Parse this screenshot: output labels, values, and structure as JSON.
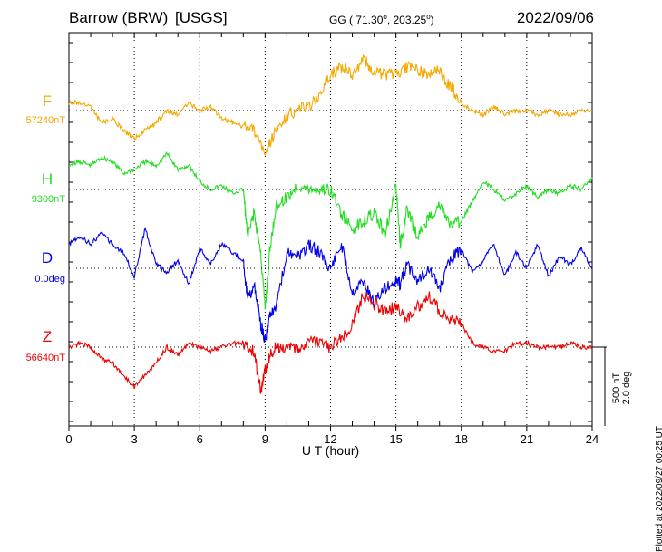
{
  "header": {
    "station": "Barrow (BRW)",
    "source": "[USGS]",
    "coords_prefix": "GG ( 71.30",
    "coords_mid": ", 203.25",
    "coords_suffix": ")",
    "degree_symbol": "o",
    "date": "2022/09/06"
  },
  "side_note": "Plotted at 2022/09/27 00:25 UT",
  "colors": {
    "F": "#f5a800",
    "H": "#22dd22",
    "D": "#0000ee",
    "Z": "#ee0000",
    "grid": "#000000"
  },
  "chart_data": {
    "type": "line",
    "xlabel": "U T (hour)",
    "xlim": [
      0,
      24
    ],
    "xticks": [
      0,
      3,
      6,
      9,
      12,
      15,
      18,
      21,
      24
    ],
    "grid": true,
    "scale": {
      "nT_label": "500 nT",
      "deg_label": "2.0 deg",
      "nT": 500,
      "deg": 2.0
    },
    "series": [
      {
        "name": "F",
        "baseline_label": "57240nT",
        "baseline": 57240,
        "unit": "nT",
        "x": [
          0,
          0.5,
          1,
          1.5,
          2,
          2.5,
          3,
          3.5,
          4,
          4.5,
          5,
          5.5,
          6,
          6.5,
          7,
          7.5,
          8,
          8.5,
          9,
          9.5,
          10,
          10.5,
          11,
          11.5,
          12,
          12.5,
          13,
          13.5,
          14,
          14.5,
          15,
          15.5,
          16,
          16.5,
          17,
          17.5,
          18,
          18.5,
          19,
          19.5,
          20,
          20.5,
          21,
          21.5,
          22,
          22.5,
          23,
          23.5,
          24
        ],
        "values": [
          50,
          50,
          25,
          -75,
          -50,
          -125,
          -175,
          -125,
          -75,
          0,
          -25,
          50,
          0,
          25,
          -50,
          -75,
          -100,
          -125,
          -250,
          -125,
          -25,
          0,
          25,
          100,
          225,
          275,
          225,
          325,
          250,
          225,
          225,
          275,
          250,
          225,
          250,
          150,
          50,
          0,
          -25,
          25,
          -25,
          0,
          0,
          -25,
          0,
          -25,
          -25,
          0,
          0
        ]
      },
      {
        "name": "H",
        "baseline_label": "9300nT",
        "baseline": 9300,
        "unit": "nT",
        "x": [
          0,
          0.5,
          1,
          1.5,
          2,
          2.5,
          3,
          3.5,
          4,
          4.5,
          5,
          5.5,
          6,
          6.5,
          7,
          7.5,
          8,
          8.2,
          8.5,
          8.8,
          9,
          9.2,
          9.5,
          10,
          10.5,
          11,
          11.5,
          12,
          12.5,
          13,
          13.5,
          14,
          14.5,
          15,
          15.2,
          15.5,
          16,
          16.5,
          17,
          17.5,
          18,
          18.5,
          19,
          19.5,
          20,
          20.5,
          21,
          21.5,
          22,
          22.5,
          23,
          23.5,
          24
        ],
        "values": [
          150,
          175,
          150,
          200,
          175,
          100,
          125,
          175,
          150,
          225,
          125,
          150,
          50,
          0,
          25,
          -25,
          0,
          -300,
          -150,
          -400,
          -750,
          -400,
          -100,
          -50,
          25,
          0,
          0,
          0,
          -150,
          -250,
          -200,
          -150,
          -275,
          25,
          -350,
          -125,
          -300,
          -175,
          -100,
          -225,
          -200,
          -75,
          50,
          0,
          -75,
          -25,
          25,
          -50,
          0,
          -25,
          25,
          0,
          75
        ]
      },
      {
        "name": "D",
        "baseline_label": "0.0deg",
        "baseline": 0.0,
        "unit": "deg",
        "x": [
          0,
          0.5,
          1,
          1.5,
          2,
          2.5,
          3,
          3.5,
          4,
          4.5,
          5,
          5.5,
          6,
          6.5,
          7,
          7.5,
          8,
          8.2,
          8.5,
          8.8,
          9,
          9.2,
          9.5,
          10,
          10.5,
          11,
          11.5,
          12,
          12.5,
          13,
          13.5,
          14,
          14.5,
          15,
          15.2,
          15.5,
          16,
          16.5,
          17,
          17.5,
          18,
          18.5,
          19,
          19.5,
          20,
          20.5,
          21,
          21.5,
          22,
          22.5,
          23,
          23.5,
          24
        ],
        "values": [
          0.6,
          0.8,
          0.6,
          0.9,
          0.6,
          0.4,
          -0.2,
          1.0,
          0.1,
          -0.1,
          0.2,
          -0.4,
          0.5,
          0.1,
          0.6,
          0.4,
          0.2,
          -0.8,
          -0.4,
          -1.4,
          -1.8,
          -1.2,
          -0.9,
          0.4,
          0.3,
          0.6,
          0.4,
          0.0,
          0.6,
          -0.6,
          -0.3,
          -0.9,
          -0.5,
          -0.3,
          -0.4,
          0.1,
          -0.3,
          0.0,
          -0.5,
          0.2,
          0.5,
          -0.1,
          0.2,
          0.6,
          -0.2,
          0.4,
          0.0,
          0.6,
          -0.2,
          0.3,
          0.1,
          0.5,
          0.0
        ]
      },
      {
        "name": "Z",
        "baseline_label": "56640nT",
        "baseline": 56640,
        "unit": "nT",
        "x": [
          0,
          0.5,
          1,
          1.5,
          2,
          2.5,
          3,
          3.5,
          4,
          4.5,
          5,
          5.5,
          6,
          6.5,
          7,
          7.5,
          8,
          8.5,
          8.8,
          9,
          9.2,
          9.5,
          10,
          10.5,
          11,
          11.5,
          12,
          12.5,
          13,
          13.5,
          14,
          14.5,
          15,
          15.5,
          16,
          16.5,
          17,
          17.5,
          18,
          18.5,
          19,
          19.5,
          20,
          20.5,
          21,
          21.5,
          22,
          22.5,
          23,
          23.5,
          24
        ],
        "values": [
          0,
          25,
          0,
          -75,
          -100,
          -175,
          -250,
          -175,
          -100,
          0,
          -50,
          25,
          0,
          -25,
          0,
          25,
          25,
          -25,
          -275,
          -150,
          -50,
          0,
          0,
          -25,
          25,
          25,
          0,
          50,
          150,
          325,
          275,
          225,
          250,
          175,
          250,
          325,
          225,
          175,
          150,
          25,
          0,
          -25,
          -25,
          25,
          25,
          0,
          0,
          0,
          25,
          0,
          0
        ]
      }
    ]
  },
  "scale_bar_x": 24,
  "labels": {
    "F": "F",
    "H": "H",
    "D": "D",
    "Z": "Z"
  }
}
